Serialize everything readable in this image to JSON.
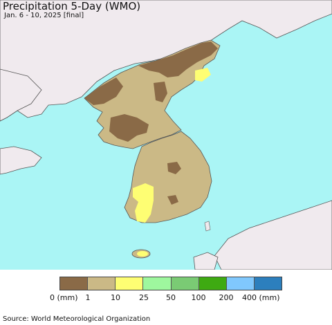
{
  "title": "Precipitation 5-Day (WMO)",
  "subtitle": "Jan. 6 - 10, 2025 [final]",
  "source": "Source: World Meteorological Organization",
  "colors": {
    "sea": "#aaf5f5",
    "land_other": "#f0eaee",
    "cat_0_1": "#8a6a47",
    "cat_1_10": "#cbb986",
    "cat_10_25": "#fefe73",
    "border": "#555555"
  },
  "legend": {
    "colors": [
      "#8a6a47",
      "#cbb986",
      "#fefe73",
      "#9ef79e",
      "#7acb74",
      "#3eaa12",
      "#80c8fd",
      "#2c7fbd"
    ],
    "labels": [
      "0 (mm)",
      "1",
      "10",
      "25",
      "50",
      "100",
      "200",
      "400 (mm)"
    ]
  }
}
